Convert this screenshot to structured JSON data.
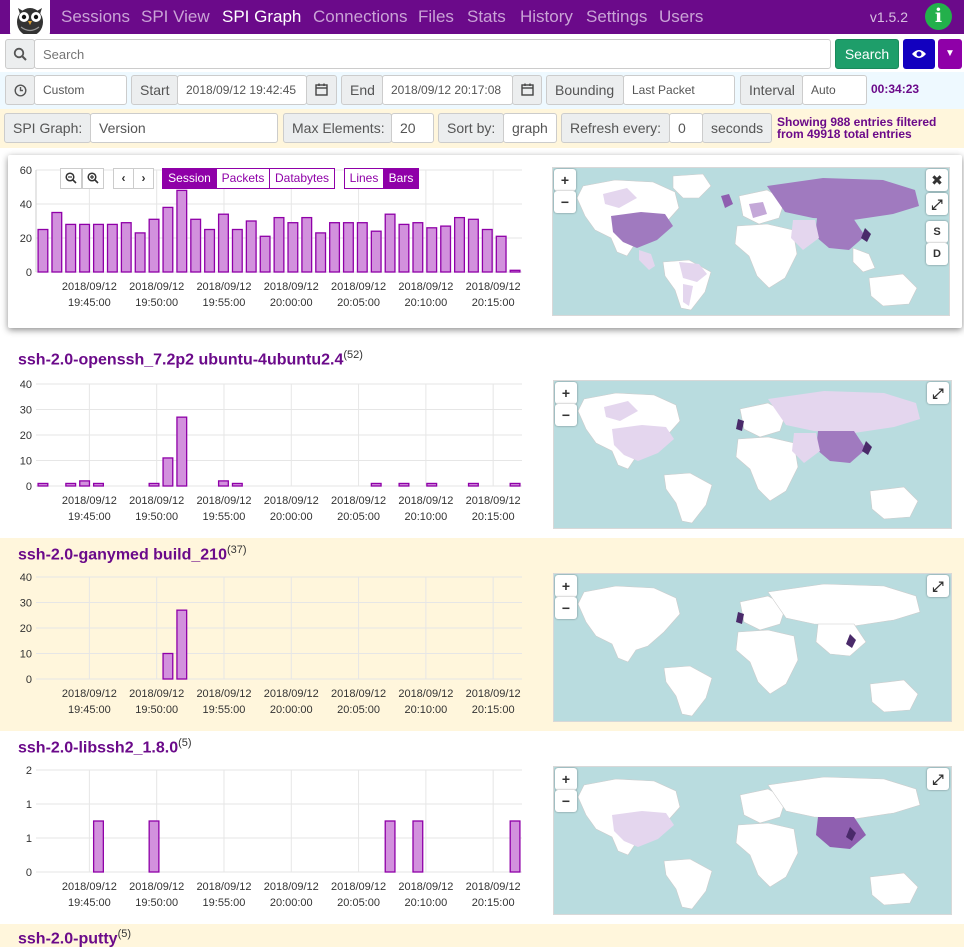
{
  "nav": {
    "items": [
      "Sessions",
      "SPI View",
      "SPI Graph",
      "Connections",
      "Files",
      "Stats",
      "History",
      "Settings",
      "Users"
    ],
    "active": "SPI Graph",
    "version": "v1.5.2",
    "info_glyph": "i"
  },
  "search": {
    "placeholder": "Search",
    "button_label": "Search"
  },
  "time": {
    "range": "Custom",
    "start_label": "Start",
    "start_value": "2018/09/12 19:42:45",
    "end_label": "End",
    "end_value": "2018/09/12 20:17:08",
    "bounding_label": "Bounding",
    "bounding_value": "Last Packet",
    "interval_label": "Interval",
    "interval_value": "Auto",
    "duration": "00:34:23"
  },
  "spi": {
    "graph_label": "SPI Graph:",
    "graph_value": "Version",
    "max_label": "Max Elements:",
    "max_value": "20",
    "sort_label": "Sort by:",
    "sort_value": "graph",
    "refresh_label": "Refresh every:",
    "refresh_value": "0",
    "refresh_unit": "seconds",
    "showing_line1": "Showing 988 entries filtered",
    "showing_line2": "from 49918 total entries"
  },
  "graph_buttons": {
    "session": "Session",
    "packets": "Packets",
    "databytes": "Databytes",
    "lines": "Lines",
    "bars": "Bars"
  },
  "map_buttons": {
    "zoom_in": "+",
    "zoom_out": "−",
    "close": "✖",
    "expand": "⤢",
    "src": "S",
    "dst": "D"
  },
  "colors": {
    "brand": "#6b0a8a",
    "bar_fill": "#d291dd",
    "bar_stroke": "#8f00a8",
    "search_green": "#1e9e6a",
    "map_water": "#b9dcdf"
  },
  "tick_labels": [
    [
      "2018/09/12",
      "19:45:00"
    ],
    [
      "2018/09/12",
      "19:50:00"
    ],
    [
      "2018/09/12",
      "19:55:00"
    ],
    [
      "2018/09/12",
      "20:00:00"
    ],
    [
      "2018/09/12",
      "20:05:00"
    ],
    [
      "2018/09/12",
      "20:10:00"
    ],
    [
      "2018/09/12",
      "20:15:00"
    ]
  ],
  "chart_data": [
    {
      "type": "bar",
      "series_label": "",
      "yticks": [
        0,
        20,
        40,
        60
      ],
      "ylim": [
        0,
        60
      ],
      "values": [
        25,
        35,
        28,
        28,
        28,
        28,
        29,
        23,
        31,
        38,
        48,
        31,
        25,
        34,
        25,
        30,
        21,
        32,
        29,
        32,
        23,
        29,
        29,
        29,
        24,
        34,
        28,
        29,
        26,
        27,
        32,
        31,
        25,
        21,
        1
      ]
    },
    {
      "type": "bar",
      "title": "ssh-2.0-openssh_7.2p2 ubuntu-4ubuntu2.4",
      "count": "(52)",
      "yticks": [
        0,
        10,
        20,
        30,
        40
      ],
      "ylim": [
        0,
        40
      ],
      "values": [
        1,
        0,
        1,
        2,
        1,
        0,
        0,
        0,
        1,
        11,
        27,
        0,
        0,
        2,
        1,
        0,
        0,
        0,
        0,
        0,
        0,
        0,
        0,
        0,
        1,
        0,
        1,
        0,
        1,
        0,
        0,
        1,
        0,
        0,
        1
      ]
    },
    {
      "type": "bar",
      "title": "ssh-2.0-ganymed build_210",
      "count": "(37)",
      "yticks": [
        0,
        10,
        20,
        30,
        40
      ],
      "ylim": [
        0,
        40
      ],
      "values": [
        0,
        0,
        0,
        0,
        0,
        0,
        0,
        0,
        0,
        10,
        27,
        0,
        0,
        0,
        0,
        0,
        0,
        0,
        0,
        0,
        0,
        0,
        0,
        0,
        0,
        0,
        0,
        0,
        0,
        0,
        0,
        0,
        0,
        0,
        0
      ]
    },
    {
      "type": "bar",
      "title": "ssh-2.0-libssh2_1.8.0",
      "count": "(5)",
      "yticks": [
        "0",
        "1",
        "1",
        "2"
      ],
      "ylim": [
        0,
        2
      ],
      "values": [
        0,
        0,
        0,
        0,
        1,
        0,
        0,
        0,
        1,
        0,
        0,
        0,
        0,
        0,
        0,
        0,
        0,
        0,
        0,
        0,
        0,
        0,
        0,
        0,
        0,
        1,
        0,
        1,
        0,
        0,
        0,
        0,
        0,
        0,
        1
      ]
    }
  ],
  "next_section": {
    "title": "ssh-2.0-putty",
    "count": "(5)"
  }
}
